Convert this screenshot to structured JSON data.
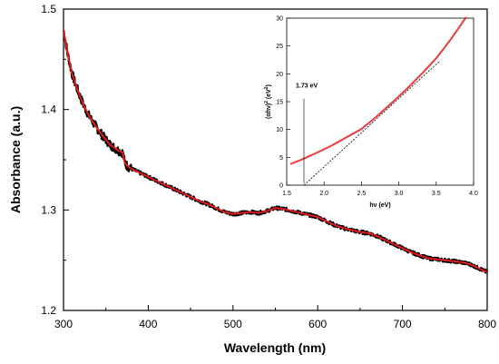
{
  "chart_data": [
    {
      "type": "line",
      "title": "",
      "xlabel": "Wavelength (nm)",
      "ylabel": "Absorbance (a.u.)",
      "xlim": [
        300,
        800
      ],
      "ylim": [
        1.2,
        1.5
      ],
      "xticks": [
        300,
        400,
        500,
        600,
        700,
        800
      ],
      "yticks": [
        1.2,
        1.3,
        1.4,
        1.5
      ],
      "xtick_labels": [
        "300",
        "400",
        "500",
        "600",
        "700",
        "800"
      ],
      "ytick_labels": [
        "1.2",
        "1.3",
        "1.4",
        "1.5"
      ],
      "grid": false,
      "series": [
        {
          "color": "#000000",
          "style": "noisy",
          "x": [
            300,
            305,
            310,
            315,
            320,
            325,
            330,
            335,
            340,
            345,
            350,
            355,
            360,
            365,
            370,
            372,
            375,
            380,
            390,
            400,
            410,
            420,
            430,
            440,
            450,
            460,
            470,
            480,
            490,
            500,
            510,
            520,
            530,
            540,
            550,
            560,
            570,
            580,
            590,
            600,
            610,
            620,
            630,
            640,
            650,
            660,
            670,
            680,
            690,
            700,
            710,
            720,
            730,
            740,
            750,
            760,
            770,
            780,
            790,
            800
          ],
          "y": [
            1.479,
            1.455,
            1.436,
            1.423,
            1.412,
            1.402,
            1.394,
            1.387,
            1.381,
            1.375,
            1.37,
            1.365,
            1.362,
            1.359,
            1.357,
            1.348,
            1.344,
            1.341,
            1.337,
            1.333,
            1.329,
            1.325,
            1.321,
            1.317,
            1.313,
            1.309,
            1.306,
            1.302,
            1.298,
            1.296,
            1.297,
            1.298,
            1.297,
            1.299,
            1.302,
            1.301,
            1.299,
            1.297,
            1.295,
            1.293,
            1.289,
            1.285,
            1.282,
            1.28,
            1.278,
            1.277,
            1.274,
            1.27,
            1.266,
            1.262,
            1.258,
            1.255,
            1.252,
            1.251,
            1.25,
            1.249,
            1.248,
            1.246,
            1.242,
            1.238
          ]
        },
        {
          "color": "#e41a1c",
          "style": "smooth",
          "x": [
            300,
            305,
            310,
            315,
            320,
            325,
            330,
            335,
            340,
            345,
            350,
            355,
            360,
            365,
            370,
            372,
            375,
            380,
            390,
            400,
            410,
            420,
            430,
            440,
            450,
            460,
            470,
            480,
            490,
            500,
            510,
            520,
            530,
            540,
            550,
            560,
            570,
            580,
            590,
            600,
            610,
            620,
            630,
            640,
            650,
            660,
            670,
            680,
            690,
            700,
            710,
            720,
            730,
            740,
            750,
            760,
            770,
            780,
            790,
            800
          ],
          "y": [
            1.479,
            1.455,
            1.436,
            1.423,
            1.412,
            1.402,
            1.394,
            1.387,
            1.381,
            1.375,
            1.37,
            1.365,
            1.362,
            1.359,
            1.357,
            1.348,
            1.344,
            1.341,
            1.337,
            1.333,
            1.329,
            1.325,
            1.321,
            1.317,
            1.313,
            1.309,
            1.306,
            1.302,
            1.298,
            1.296,
            1.297,
            1.298,
            1.297,
            1.299,
            1.302,
            1.301,
            1.299,
            1.297,
            1.295,
            1.293,
            1.289,
            1.285,
            1.282,
            1.28,
            1.278,
            1.277,
            1.274,
            1.27,
            1.266,
            1.262,
            1.258,
            1.255,
            1.252,
            1.251,
            1.25,
            1.249,
            1.248,
            1.246,
            1.242,
            1.238
          ]
        }
      ]
    },
    {
      "type": "line",
      "title": "",
      "xlabel": "hν (eV)",
      "ylabel_base": "(αhν)",
      "ylabel_sup1": "2",
      "ylabel_unit": " (eV",
      "ylabel_sup2": "2",
      "ylabel_close": ")",
      "xlim": [
        1.5,
        4.0
      ],
      "ylim": [
        0,
        30
      ],
      "xticks": [
        1.5,
        2.0,
        2.5,
        3.0,
        3.5,
        4.0
      ],
      "yticks": [
        0,
        5,
        10,
        15,
        20,
        25,
        30
      ],
      "xtick_labels": [
        "1.5",
        "2.0",
        "2.5",
        "3.0",
        "3.5",
        "4.0"
      ],
      "ytick_labels": [
        "0",
        "5",
        "10",
        "15",
        "20",
        "25",
        "30"
      ],
      "grid": false,
      "annotation": "1.73 eV",
      "annotation_x": 1.73,
      "series": [
        {
          "color": "#e41a1c",
          "x": [
            1.55,
            1.7,
            1.9,
            2.1,
            2.3,
            2.5,
            2.7,
            2.9,
            3.1,
            3.3,
            3.5,
            3.6,
            3.7,
            3.8,
            3.9
          ],
          "y": [
            3.8,
            4.6,
            5.8,
            7.1,
            8.6,
            10.1,
            12.3,
            14.7,
            17.2,
            19.9,
            22.8,
            24.5,
            26.3,
            28.2,
            30.2
          ]
        },
        {
          "color": "#000000",
          "style": "dashed",
          "x": [
            1.73,
            3.55
          ],
          "y": [
            0,
            22.3
          ]
        }
      ]
    }
  ]
}
